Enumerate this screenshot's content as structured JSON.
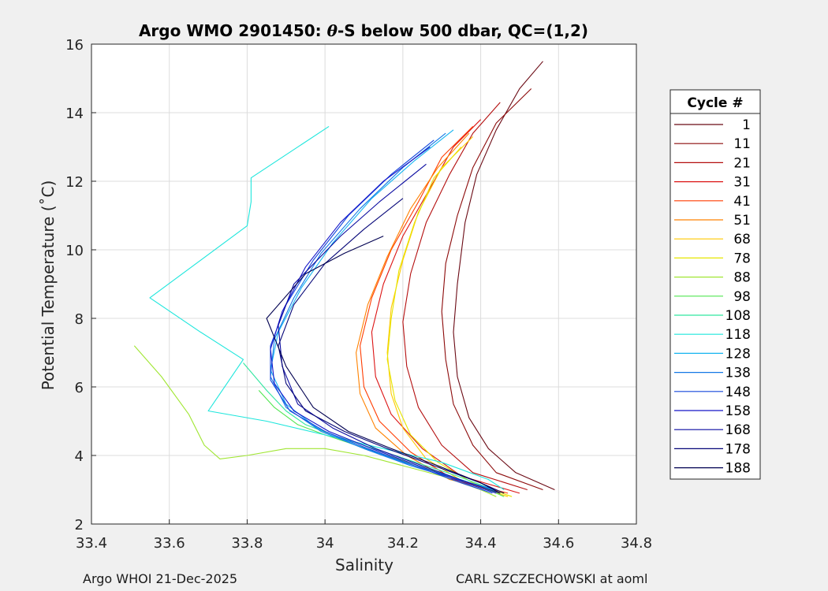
{
  "chart_data": {
    "type": "line",
    "title_prefix": "Argo WMO 2901450: ",
    "title_symbol": "θ",
    "title_suffix": "-S below 500 dbar,  QC=(1,2)",
    "xlabel": "Salinity",
    "ylabel": "Potential Temperature (˚C)",
    "xlim": [
      33.4,
      34.8
    ],
    "ylim": [
      2,
      16
    ],
    "xticks": [
      33.4,
      33.6,
      33.8,
      34,
      34.2,
      34.4,
      34.6,
      34.8
    ],
    "xtick_labels": [
      "33.4",
      "33.6",
      "33.8",
      "34",
      "34.2",
      "34.4",
      "34.6",
      "34.8"
    ],
    "yticks": [
      2,
      4,
      6,
      8,
      10,
      12,
      14,
      16
    ],
    "ytick_labels": [
      "2",
      "4",
      "6",
      "8",
      "10",
      "12",
      "14",
      "16"
    ],
    "grid": true,
    "legend_title": "Cycle #",
    "legend_position": "right",
    "legend": [
      {
        "label": "1",
        "color": "#6b0a14"
      },
      {
        "label": "11",
        "color": "#8c0a0a"
      },
      {
        "label": "21",
        "color": "#b40f0f"
      },
      {
        "label": "31",
        "color": "#dc1414"
      },
      {
        "label": "41",
        "color": "#ff3c00"
      },
      {
        "label": "51",
        "color": "#ff8200"
      },
      {
        "label": "68",
        "color": "#ffc800"
      },
      {
        "label": "78",
        "color": "#e6e600"
      },
      {
        "label": "88",
        "color": "#a0e632"
      },
      {
        "label": "98",
        "color": "#50e650"
      },
      {
        "label": "108",
        "color": "#32e6a0"
      },
      {
        "label": "118",
        "color": "#1ee6dc"
      },
      {
        "label": "128",
        "color": "#14b4f0"
      },
      {
        "label": "138",
        "color": "#1478e6"
      },
      {
        "label": "148",
        "color": "#1446dc"
      },
      {
        "label": "158",
        "color": "#1414c8"
      },
      {
        "label": "168",
        "color": "#0a0aa0"
      },
      {
        "label": "178",
        "color": "#060678"
      },
      {
        "label": "188",
        "color": "#000050"
      }
    ],
    "series": [
      {
        "name": "1",
        "color": "#6b0a14",
        "s": [
          34.56,
          34.5,
          34.44,
          34.39,
          34.36,
          34.34,
          34.33,
          34.34,
          34.37,
          34.42,
          34.49,
          34.59
        ],
        "t": [
          15.5,
          14.7,
          13.5,
          12.2,
          10.8,
          9.0,
          7.6,
          6.3,
          5.1,
          4.2,
          3.5,
          3.0
        ]
      },
      {
        "name": "11",
        "color": "#8c0a0a",
        "s": [
          34.53,
          34.44,
          34.38,
          34.34,
          34.31,
          34.3,
          34.31,
          34.33,
          34.38,
          34.44,
          34.56
        ],
        "t": [
          14.7,
          13.7,
          12.4,
          11.0,
          9.6,
          8.2,
          6.8,
          5.5,
          4.3,
          3.5,
          3.0
        ]
      },
      {
        "name": "21",
        "color": "#b40f0f",
        "s": [
          34.45,
          34.38,
          34.32,
          34.26,
          34.22,
          34.2,
          34.21,
          34.24,
          34.3,
          34.38,
          34.52
        ],
        "t": [
          14.3,
          13.4,
          12.2,
          10.8,
          9.3,
          7.9,
          6.6,
          5.4,
          4.3,
          3.5,
          3.0
        ]
      },
      {
        "name": "31",
        "color": "#dc1414",
        "s": [
          34.4,
          34.33,
          34.27,
          34.2,
          34.15,
          34.12,
          34.13,
          34.17,
          34.25,
          34.35,
          34.5
        ],
        "t": [
          13.8,
          13.0,
          11.8,
          10.4,
          9.0,
          7.6,
          6.3,
          5.2,
          4.2,
          3.4,
          2.9
        ]
      },
      {
        "name": "41",
        "color": "#ff3c00",
        "s": [
          34.38,
          34.3,
          34.24,
          34.17,
          34.12,
          34.09,
          34.1,
          34.14,
          34.22,
          34.33,
          34.47
        ],
        "t": [
          13.6,
          12.7,
          11.4,
          10.0,
          8.6,
          7.2,
          6.0,
          5.0,
          4.1,
          3.3,
          2.9
        ]
      },
      {
        "name": "51",
        "color": "#ff8200",
        "s": [
          34.37,
          34.29,
          34.22,
          34.16,
          34.11,
          34.08,
          34.09,
          34.13,
          34.21,
          34.32,
          34.46
        ],
        "t": [
          13.4,
          12.4,
          11.2,
          9.8,
          8.4,
          7.0,
          5.8,
          4.8,
          4.0,
          3.3,
          2.9
        ]
      },
      {
        "name": "68",
        "color": "#ffc800",
        "s": [
          34.38,
          34.3,
          34.24,
          34.2,
          34.17,
          34.16,
          34.17,
          34.2,
          34.26,
          34.36,
          34.47
        ],
        "t": [
          13.3,
          12.4,
          11.1,
          9.7,
          8.3,
          7.0,
          5.8,
          4.8,
          3.9,
          3.2,
          2.8
        ]
      },
      {
        "name": "78",
        "color": "#e6e600",
        "s": [
          34.35,
          34.28,
          34.23,
          34.19,
          34.17,
          34.16,
          34.18,
          34.22,
          34.29,
          34.38,
          34.48
        ],
        "t": [
          13.0,
          12.1,
          10.8,
          9.4,
          8.0,
          6.8,
          5.6,
          4.6,
          3.8,
          3.2,
          2.8
        ]
      },
      {
        "name": "88",
        "color": "#a0e632",
        "s": [
          33.51,
          33.58,
          33.65,
          33.69,
          33.73,
          33.8,
          33.9,
          34.0,
          34.1,
          34.2,
          34.3,
          34.4,
          34.44
        ],
        "t": [
          7.2,
          6.3,
          5.2,
          4.3,
          3.9,
          4.0,
          4.2,
          4.2,
          4.0,
          3.7,
          3.4,
          3.0,
          2.8
        ]
      },
      {
        "name": "98",
        "color": "#50e650",
        "s": [
          33.83,
          33.87,
          33.93,
          34.0,
          34.08,
          34.16,
          34.24,
          34.32,
          34.4,
          34.46
        ],
        "t": [
          5.9,
          5.4,
          4.9,
          4.6,
          4.3,
          4.0,
          3.7,
          3.4,
          3.1,
          2.8
        ]
      },
      {
        "name": "108",
        "color": "#32e6a0",
        "s": [
          33.79,
          33.85,
          33.9,
          33.95,
          34.02,
          34.1,
          34.18,
          34.26,
          34.34,
          34.41,
          34.45
        ],
        "t": [
          6.7,
          5.9,
          5.3,
          4.9,
          4.6,
          4.3,
          4.0,
          3.7,
          3.4,
          3.1,
          2.9
        ]
      },
      {
        "name": "118",
        "color": "#1ee6dc",
        "s": [
          34.01,
          33.81,
          33.81,
          33.8,
          33.55,
          33.68,
          33.79,
          33.7,
          33.85,
          34.0,
          34.15,
          34.3,
          34.42,
          34.46
        ],
        "t": [
          13.6,
          12.1,
          11.4,
          10.7,
          8.6,
          7.6,
          6.8,
          5.3,
          5.0,
          4.6,
          4.2,
          3.8,
          3.3,
          3.0
        ]
      },
      {
        "name": "128",
        "color": "#14b4f0",
        "s": [
          34.33,
          34.23,
          34.12,
          34.02,
          33.94,
          33.88,
          33.86,
          33.9,
          33.98,
          34.08,
          34.2,
          34.32,
          34.43
        ],
        "t": [
          13.5,
          12.6,
          11.5,
          10.2,
          8.9,
          7.6,
          6.5,
          5.5,
          4.8,
          4.3,
          3.8,
          3.4,
          3.0
        ]
      },
      {
        "name": "138",
        "color": "#1478e6",
        "s": [
          34.31,
          34.2,
          34.09,
          33.99,
          33.92,
          33.87,
          33.86,
          33.9,
          33.99,
          34.1,
          34.22,
          34.34,
          34.44
        ],
        "t": [
          13.4,
          12.4,
          11.2,
          9.9,
          8.6,
          7.4,
          6.3,
          5.4,
          4.7,
          4.2,
          3.7,
          3.3,
          3.0
        ]
      },
      {
        "name": "148",
        "color": "#1446dc",
        "s": [
          34.28,
          34.17,
          34.06,
          33.97,
          33.9,
          33.86,
          33.86,
          33.91,
          34.0,
          34.11,
          34.23,
          34.35,
          34.43
        ],
        "t": [
          13.2,
          12.2,
          11.0,
          9.7,
          8.4,
          7.2,
          6.2,
          5.3,
          4.7,
          4.2,
          3.7,
          3.2,
          2.9
        ]
      },
      {
        "name": "158",
        "color": "#1414c8",
        "s": [
          34.27,
          34.15,
          34.04,
          33.95,
          33.89,
          33.86,
          33.87,
          33.92,
          34.01,
          34.12,
          34.24,
          34.36,
          34.44
        ],
        "t": [
          13.0,
          12.0,
          10.8,
          9.5,
          8.2,
          7.1,
          6.1,
          5.3,
          4.7,
          4.2,
          3.7,
          3.2,
          2.9
        ]
      },
      {
        "name": "168",
        "color": "#0a0aa0",
        "s": [
          34.26,
          34.14,
          34.04,
          33.92,
          33.88,
          33.89,
          33.93,
          34.02,
          34.13,
          34.25,
          34.37,
          34.45
        ],
        "t": [
          12.5,
          11.4,
          10.4,
          9.0,
          7.8,
          6.6,
          5.5,
          4.8,
          4.2,
          3.7,
          3.2,
          2.9
        ]
      },
      {
        "name": "178",
        "color": "#060678",
        "s": [
          34.2,
          34.1,
          34.0,
          33.92,
          33.88,
          33.9,
          33.95,
          34.05,
          34.16,
          34.28,
          34.4,
          34.46
        ],
        "t": [
          11.5,
          10.6,
          9.6,
          8.4,
          7.2,
          6.1,
          5.3,
          4.7,
          4.2,
          3.7,
          3.2,
          2.9
        ]
      },
      {
        "name": "188",
        "color": "#000050",
        "s": [
          34.15,
          34.05,
          33.95,
          33.85,
          33.9,
          33.97,
          34.06,
          34.17,
          34.29,
          34.4,
          34.45
        ],
        "t": [
          10.4,
          9.9,
          9.3,
          8.0,
          6.6,
          5.4,
          4.7,
          4.2,
          3.7,
          3.2,
          2.9
        ]
      }
    ]
  },
  "footer": {
    "left": "Argo WHOI 21-Dec-2025",
    "right": "CARL SZCZECHOWSKI at aoml"
  }
}
